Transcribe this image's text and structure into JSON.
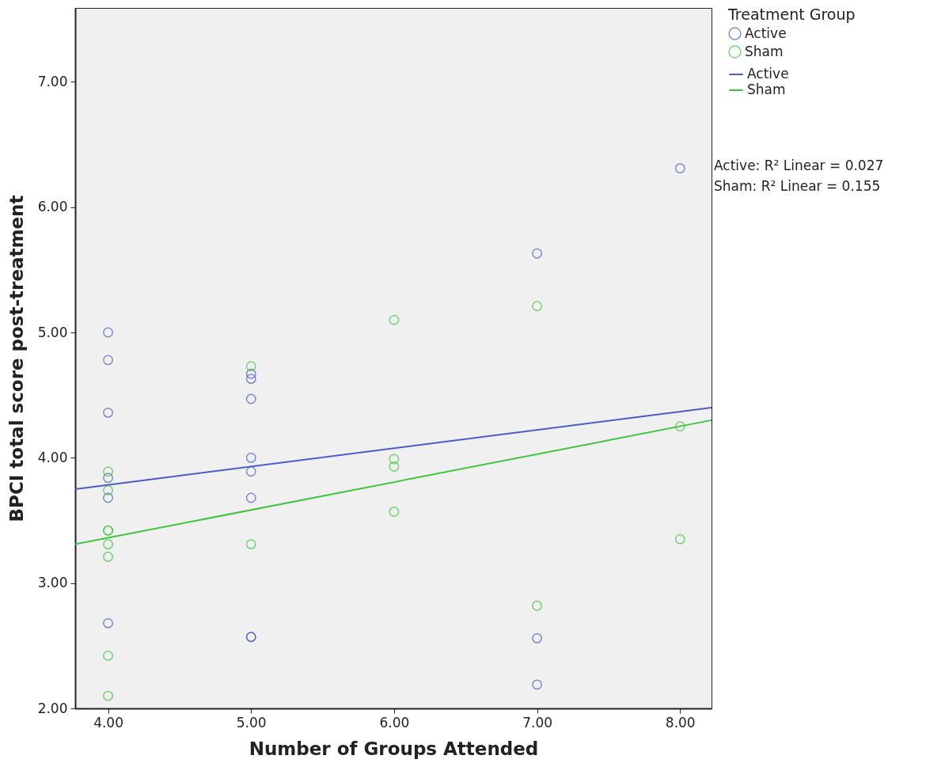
{
  "chart_data": {
    "type": "scatter",
    "xlabel": "Number of Groups Attended",
    "ylabel": "BPCI total score post-treatment",
    "legend_title": "Treatment Group",
    "legend": "right",
    "grid": false,
    "marker": "circle",
    "line_style": "solid",
    "xlim": [
      3.77,
      8.22
    ],
    "xticks": [
      {
        "value": 4,
        "label": "4.00"
      },
      {
        "value": 5,
        "label": "5.00"
      },
      {
        "value": 6,
        "label": "6.00"
      },
      {
        "value": 7,
        "label": "7.00"
      },
      {
        "value": 8,
        "label": "8.00"
      }
    ],
    "ylim": [
      2.0,
      7.59
    ],
    "yticks": [
      {
        "value": 2,
        "label": "2.00"
      },
      {
        "value": 3,
        "label": "3.00"
      },
      {
        "value": 4,
        "label": "4.00"
      },
      {
        "value": 5,
        "label": "5.00"
      },
      {
        "value": 6,
        "label": "6.00"
      },
      {
        "value": 7,
        "label": "7.00"
      }
    ],
    "series": [
      {
        "name": "Active",
        "color": "#4a5ec2",
        "x": [
          4,
          4,
          4,
          4,
          4,
          4,
          5,
          5,
          5,
          5,
          5,
          5,
          5,
          5,
          7,
          7,
          7,
          8
        ],
        "values": [
          5.0,
          4.78,
          4.36,
          3.84,
          3.68,
          2.68,
          4.67,
          4.63,
          4.47,
          4.0,
          3.89,
          3.68,
          2.57,
          2.57,
          5.63,
          2.56,
          2.19,
          6.31
        ]
      },
      {
        "name": "Sham",
        "color": "#3fc43f",
        "x": [
          4,
          4,
          4,
          4,
          4,
          4,
          4,
          4,
          5,
          5,
          6,
          6,
          6,
          6,
          7,
          7,
          8,
          8
        ],
        "values": [
          3.89,
          3.74,
          3.42,
          3.42,
          3.31,
          3.21,
          2.42,
          2.1,
          4.73,
          3.31,
          5.1,
          3.99,
          3.93,
          3.57,
          5.21,
          2.82,
          4.25,
          3.35
        ]
      },
      {
        "name": "Active",
        "type": "line",
        "marker": "none",
        "color": "#4a5ec2",
        "x": [
          3.77,
          8.22
        ],
        "values": [
          3.75,
          4.4
        ]
      },
      {
        "name": "Sham",
        "type": "line",
        "marker": "none",
        "color": "#3fc43f",
        "x": [
          3.77,
          8.22
        ],
        "values": [
          3.31,
          4.3
        ]
      }
    ],
    "annotations": [
      "Active: R² Linear = 0.027",
      "Sham: R² Linear = 0.155"
    ]
  }
}
